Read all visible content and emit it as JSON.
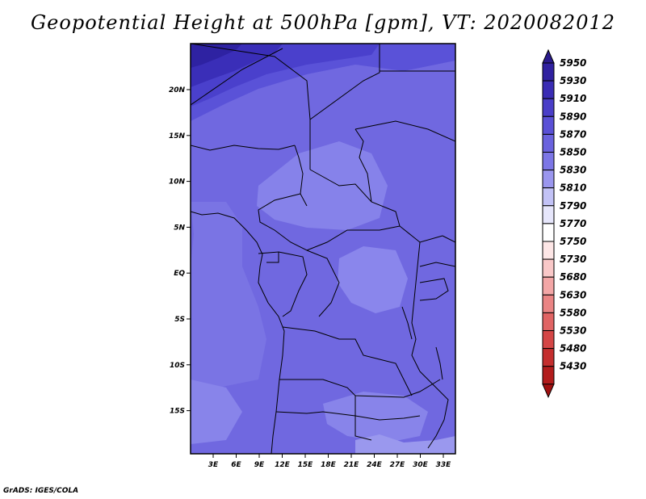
{
  "title": "Geopotential Height at 500hPa [gpm], VT: 2020082012",
  "credit": "GrADS: IGES/COLA",
  "map": {
    "lon_ticks": [
      "3E",
      "6E",
      "9E",
      "12E",
      "15E",
      "18E",
      "21E",
      "24E",
      "27E",
      "30E",
      "33E"
    ],
    "lat_ticks": [
      "20N",
      "15N",
      "10N",
      "5N",
      "EQ",
      "5S",
      "10S",
      "15S"
    ]
  },
  "colorbar": {
    "labels": [
      "5950",
      "5930",
      "5910",
      "5890",
      "5870",
      "5850",
      "5830",
      "5810",
      "5790",
      "5770",
      "5750",
      "5730",
      "5680",
      "5630",
      "5580",
      "5530",
      "5480",
      "5430"
    ],
    "colors": [
      "#2a1a8c",
      "#3021a0",
      "#3a2cb4",
      "#4a3ec8",
      "#5a50d6",
      "#6a62de",
      "#7c76e6",
      "#9a96ee",
      "#c2c2f6",
      "#e6e6fb",
      "#ffffff",
      "#fde6e6",
      "#f9c8c8",
      "#f3a6a6",
      "#ea8484",
      "#e06464",
      "#d44646",
      "#c42e2e",
      "#b21c1c",
      "#a01010"
    ]
  }
}
